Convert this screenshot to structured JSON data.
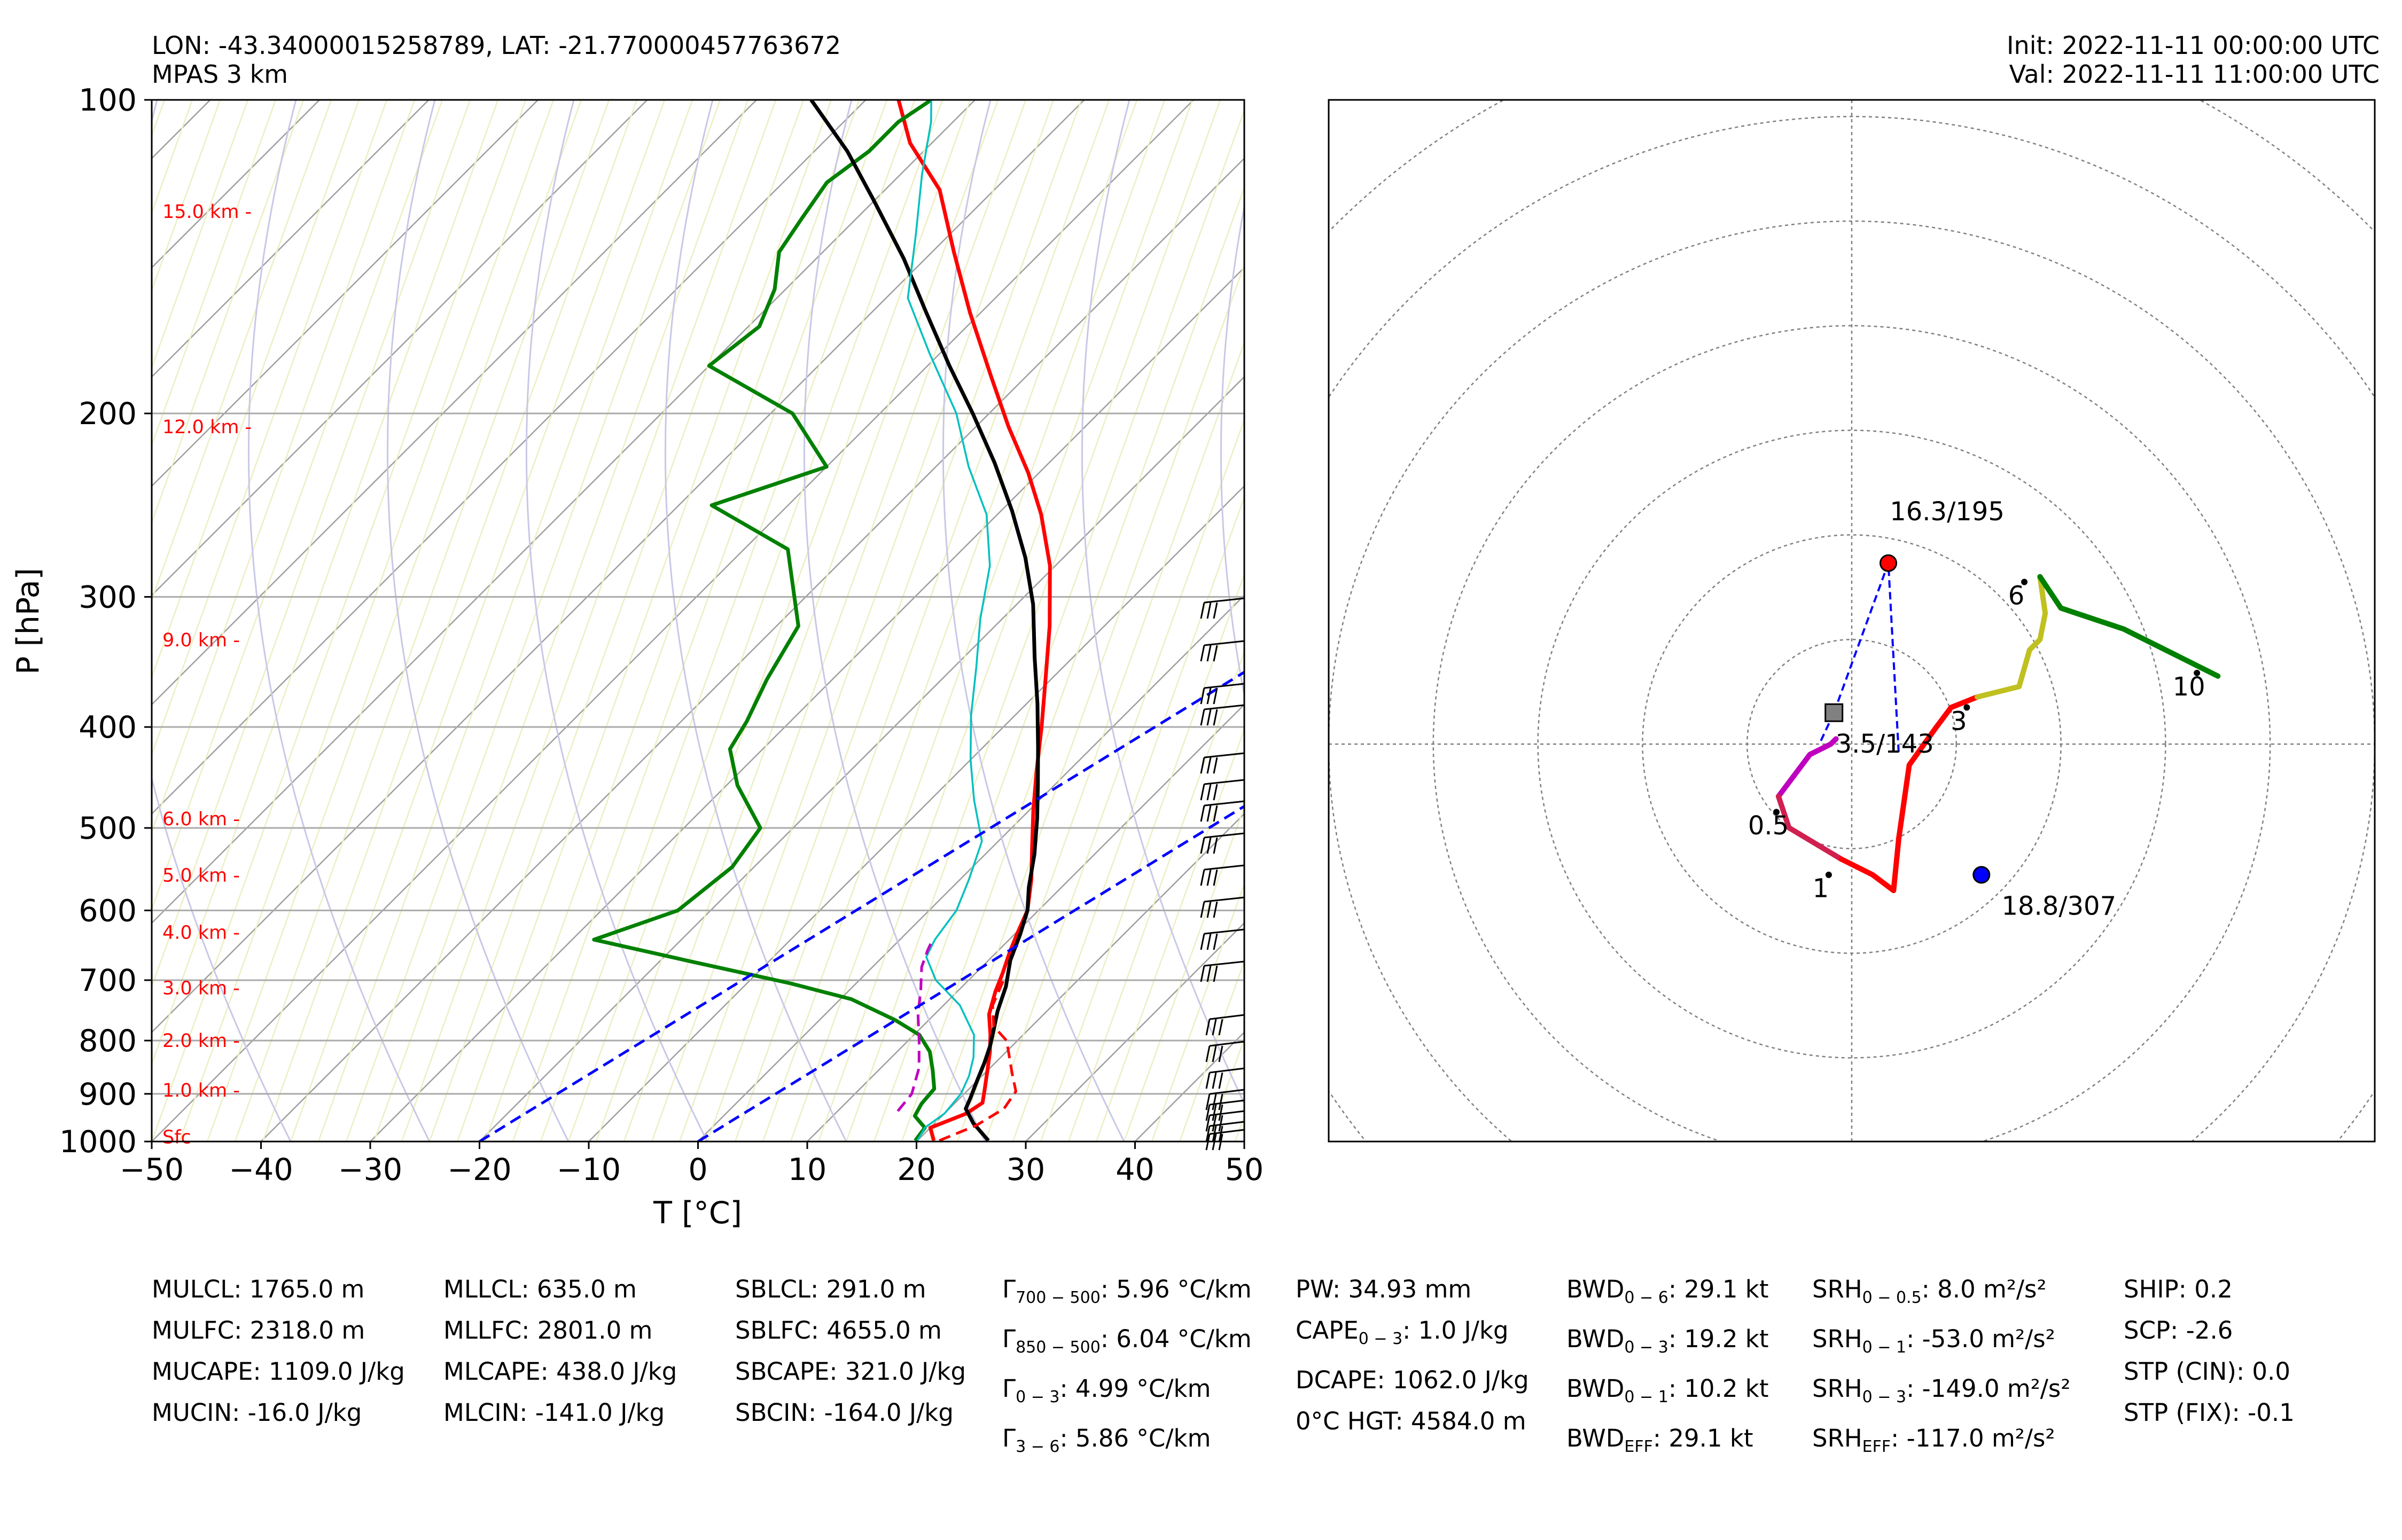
{
  "header": {
    "location": "LON: -43.34000015258789, LAT: -21.770000457763672",
    "model": "MPAS 3 km",
    "init": "Init: 2022-11-11 00:00:00 UTC",
    "valid": "Val: 2022-11-11 11:00:00 UTC"
  },
  "chart_data": [
    {
      "type": "line",
      "subtype": "skew-T log-P",
      "xlabel": "T [°C]",
      "ylabel": "P [hPa]",
      "xlim": [
        -50,
        50
      ],
      "ylim": [
        1000,
        100
      ],
      "y_scale": "log",
      "x_ticks": [
        "−50",
        "−40",
        "−30",
        "−20",
        "−10",
        "0",
        "10",
        "20",
        "30",
        "40",
        "50"
      ],
      "y_ticks": [
        "100",
        "200",
        "300",
        "400",
        "500",
        "600",
        "700",
        "800",
        "900",
        "1000"
      ],
      "y_tick_values": [
        100,
        200,
        300,
        400,
        500,
        600,
        700,
        800,
        900,
        1000
      ],
      "grid": true,
      "height_labels": [
        {
          "label": "15.0 km -",
          "p": 128
        },
        {
          "label": "12.0 km -",
          "p": 206
        },
        {
          "label": "9.0 km -",
          "p": 330
        },
        {
          "label": "6.0 km -",
          "p": 490
        },
        {
          "label": "5.0 km -",
          "p": 555
        },
        {
          "label": "4.0 km -",
          "p": 630
        },
        {
          "label": "3.0 km -",
          "p": 712
        },
        {
          "label": "2.0 km -",
          "p": 800
        },
        {
          "label": "1.0 km -",
          "p": 893
        },
        {
          "label": "Sfc",
          "p": 990
        }
      ],
      "series": [
        {
          "color": "#ff0000",
          "style": "solid",
          "points": [
            [
              21.5,
              998
            ],
            [
              20,
              970
            ],
            [
              22,
              940
            ],
            [
              22.5,
              918
            ],
            [
              21.5,
              892
            ],
            [
              20,
              855
            ],
            [
              18.5,
              820
            ],
            [
              17,
              790
            ],
            [
              15,
              755
            ],
            [
              13.5,
              718
            ],
            [
              12.5,
              690
            ],
            [
              11.2,
              658
            ],
            [
              10.2,
              632
            ],
            [
              9,
              600
            ],
            [
              6.5,
              560
            ],
            [
              3.5,
              520
            ],
            [
              0.3,
              480
            ],
            [
              -3,
              440
            ],
            [
              -6.5,
              400
            ],
            [
              -10.5,
              360
            ],
            [
              -15,
              320
            ],
            [
              -20.5,
              280
            ],
            [
              -26,
              250
            ],
            [
              -31,
              228
            ],
            [
              -37,
              206
            ],
            [
              -43,
              185
            ],
            [
              -51,
              160
            ],
            [
              -58,
              140
            ],
            [
              -65,
              122
            ],
            [
              -72,
              110
            ],
            [
              -77,
              100
            ]
          ]
        },
        {
          "color": "#008000",
          "style": "solid",
          "points": [
            [
              19.8,
              998
            ],
            [
              19.5,
              970
            ],
            [
              17.5,
              945
            ],
            [
              17,
              920
            ],
            [
              16.8,
              890
            ],
            [
              15,
              855
            ],
            [
              13,
              820
            ],
            [
              10.5,
              790
            ],
            [
              7,
              765
            ],
            [
              1,
              730
            ],
            [
              -6,
              705
            ],
            [
              -17,
              672
            ],
            [
              -28,
              640
            ],
            [
              -23,
              600
            ],
            [
              -22,
              545
            ],
            [
              -23,
              500
            ],
            [
              -29,
              455
            ],
            [
              -33,
              420
            ],
            [
              -34,
              395
            ],
            [
              -36,
              360
            ],
            [
              -38,
              320
            ],
            [
              -46,
              270
            ],
            [
              -57,
              245
            ],
            [
              -50,
              225
            ],
            [
              -58,
              200
            ],
            [
              -70,
              180
            ],
            [
              -69,
              165
            ],
            [
              -71,
              152
            ],
            [
              -74,
              140
            ],
            [
              -75,
              130
            ],
            [
              -76,
              120
            ],
            [
              -75,
              112
            ],
            [
              -75,
              105
            ],
            [
              -74,
              100
            ]
          ]
        },
        {
          "color": "#000000",
          "style": "solid",
          "points": [
            [
              26.5,
              998
            ],
            [
              23.5,
              960
            ],
            [
              21.5,
              930
            ],
            [
              21,
              910
            ],
            [
              20,
              875
            ],
            [
              19,
              840
            ],
            [
              18,
              810
            ],
            [
              17,
              785
            ],
            [
              15.5,
              750
            ],
            [
              14,
              710
            ],
            [
              12,
              670
            ],
            [
              10.5,
              632
            ],
            [
              9,
              600
            ],
            [
              7,
              570
            ],
            [
              4.5,
              530
            ],
            [
              1.5,
              490
            ],
            [
              -1.5,
              455
            ],
            [
              -5,
              418
            ],
            [
              -9,
              380
            ],
            [
              -13.5,
              343
            ],
            [
              -18.5,
              305
            ],
            [
              -23.5,
              275
            ],
            [
              -29,
              248
            ],
            [
              -35,
              223
            ],
            [
              -41.5,
              200
            ],
            [
              -48,
              180
            ],
            [
              -55,
              160
            ],
            [
              -62,
              142
            ],
            [
              -70,
              125
            ],
            [
              -77,
              112
            ],
            [
              -85,
              100
            ]
          ]
        },
        {
          "color": "#00c0c0",
          "style": "solid",
          "points": [
            [
              20,
              998
            ],
            [
              19.5,
              970
            ],
            [
              20,
              940
            ],
            [
              19.7,
              900
            ],
            [
              18.8,
              865
            ],
            [
              17.5,
              830
            ],
            [
              15.5,
              790
            ],
            [
              11.5,
              740
            ],
            [
              7,
              700
            ],
            [
              4,
              665
            ],
            [
              3.2,
              640
            ],
            [
              2.5,
              600
            ],
            [
              0.8,
              560
            ],
            [
              -1.5,
              515
            ],
            [
              -6,
              470
            ],
            [
              -10,
              430
            ],
            [
              -14,
              390
            ],
            [
              -18,
              350
            ],
            [
              -22,
              315
            ],
            [
              -26,
              280
            ],
            [
              -31,
              250
            ],
            [
              -37,
              225
            ],
            [
              -43,
              200
            ],
            [
              -51,
              175
            ],
            [
              -58,
              155
            ],
            [
              -63,
              135
            ],
            [
              -68,
              118
            ],
            [
              -72,
              105
            ],
            [
              -74,
              100
            ]
          ]
        },
        {
          "color": "#ff0000",
          "style": "dashed",
          "points": [
            [
              22,
              998
            ],
            [
              24,
              965
            ],
            [
              25,
              930
            ],
            [
              24.5,
              895
            ],
            [
              22.5,
              860
            ],
            [
              20.5,
              825
            ],
            [
              19,
              800
            ],
            [
              16.5,
              775
            ],
            [
              14.5,
              740
            ],
            [
              13.2,
              700
            ]
          ]
        },
        {
          "color": "#c000c0",
          "style": "dashed",
          "points": [
            [
              15.5,
              935
            ],
            [
              15.2,
              900
            ],
            [
              13.5,
              850
            ],
            [
              11,
              800
            ],
            [
              8.5,
              755
            ],
            [
              6.5,
              715
            ],
            [
              4.5,
              680
            ],
            [
              3.5,
              655
            ],
            [
              3,
              640
            ]
          ]
        },
        {
          "color": "#0000ff",
          "style": "dashed",
          "points": [
            [
              -20,
              1000
            ],
            [
              40,
              100
            ]
          ]
        },
        {
          "color": "#0000ff",
          "style": "dashed",
          "points": [
            [
              0,
              1000
            ],
            [
              60,
              100
            ]
          ]
        }
      ]
    },
    {
      "type": "line",
      "subtype": "hodograph",
      "xlim": [
        -50,
        50
      ],
      "ylim": [
        -38,
        62
      ],
      "ring_radii": [
        10,
        20,
        30,
        40,
        50,
        60,
        70
      ],
      "grid": true,
      "segments": [
        {
          "color": "#bf00bf",
          "points": [
            [
              -7,
              -5
            ],
            [
              -4,
              -1
            ],
            [
              -2,
              0
            ],
            [
              -1.5,
              0.5
            ]
          ]
        },
        {
          "color": "#d02050",
          "points": [
            [
              -7,
              -5
            ],
            [
              -6,
              -8
            ],
            [
              -1,
              -11
            ]
          ]
        },
        {
          "color": "#ff0000",
          "points": [
            [
              -1,
              -11
            ],
            [
              2,
              -12.5
            ],
            [
              4,
              -14
            ],
            [
              4.5,
              -9
            ],
            [
              5.5,
              -2
            ],
            [
              8,
              1.5
            ],
            [
              9.5,
              3.5
            ],
            [
              12,
              4.5
            ]
          ]
        },
        {
          "color": "#c0c020",
          "points": [
            [
              12,
              4.5
            ],
            [
              16,
              5.5
            ],
            [
              17,
              9
            ],
            [
              18,
              10
            ],
            [
              18.5,
              12.5
            ],
            [
              18,
              16
            ]
          ]
        },
        {
          "color": "#008000",
          "points": [
            [
              18,
              16
            ],
            [
              20,
              13
            ],
            [
              26,
              11
            ],
            [
              32,
              8
            ],
            [
              35,
              6.5
            ]
          ]
        }
      ],
      "level_labels": [
        {
          "label": "0.5",
          "u": -7.2,
          "v": -6.5
        },
        {
          "label": "1",
          "u": -2.2,
          "v": -12.5
        },
        {
          "label": "3",
          "u": 11,
          "v": 3.5
        },
        {
          "label": "6",
          "u": 16.5,
          "v": 15.5
        },
        {
          "label": "10",
          "u": 33,
          "v": 6.8
        }
      ],
      "markers": [
        {
          "shape": "circle",
          "color": "#ff0000",
          "u": 3.5,
          "v": 17.3,
          "label": "16.3/195"
        },
        {
          "shape": "circle",
          "color": "#0000ff",
          "u": 12.4,
          "v": -12.5,
          "label": "18.8/307"
        },
        {
          "shape": "square",
          "color": "#808080",
          "u": -1.7,
          "v": 3.0,
          "label": "3.5/143"
        }
      ]
    }
  ],
  "indices": [
    [
      "MULCL: 1765.0 m",
      "MULFC: 2318.0 m",
      "MUCAPE: 1109.0 J/kg",
      "MUCIN: -16.0 J/kg"
    ],
    [
      "MLLCL: 635.0 m",
      "MLLFC: 2801.0 m",
      "MLCAPE: 438.0 J/kg",
      "MLCIN: -141.0 J/kg"
    ],
    [
      "SBLCL: 291.0 m",
      "SBLFC: 4655.0 m",
      "SBCAPE: 321.0 J/kg",
      "SBCIN: -164.0 J/kg"
    ],
    [
      {
        "pre": "Γ",
        "sub": "700 − 500",
        "post": ": 5.96 °C/km"
      },
      {
        "pre": "Γ",
        "sub": "850 − 500",
        "post": ": 6.04 °C/km"
      },
      {
        "pre": "Γ",
        "sub": "0 − 3",
        "post": ": 4.99 °C/km"
      },
      {
        "pre": "Γ",
        "sub": "3 − 6",
        "post": ": 5.86 °C/km"
      }
    ],
    [
      {
        "pre": "PW: 34.93 mm",
        "sub": "",
        "post": ""
      },
      {
        "pre": "CAPE",
        "sub": "0 − 3",
        "post": ": 1.0 J/kg"
      },
      {
        "pre": "DCAPE: 1062.0 J/kg",
        "sub": "",
        "post": ""
      },
      {
        "pre": "0°C HGT: 4584.0 m",
        "sub": "",
        "post": ""
      }
    ],
    [
      {
        "pre": "BWD",
        "sub": "0 − 6",
        "post": ": 29.1 kt"
      },
      {
        "pre": "BWD",
        "sub": "0 − 3",
        "post": ": 19.2 kt"
      },
      {
        "pre": "BWD",
        "sub": "0 − 1",
        "post": ": 10.2 kt"
      },
      {
        "pre": "BWD",
        "sub": "EFF",
        "post": ": 29.1 kt"
      }
    ],
    [
      {
        "pre": "SRH",
        "sub": "0 − 0.5",
        "post": ": 8.0 m²/s²"
      },
      {
        "pre": "SRH",
        "sub": "0 − 1",
        "post": ": -53.0 m²/s²"
      },
      {
        "pre": "SRH",
        "sub": "0 − 3",
        "post": ": -149.0 m²/s²"
      },
      {
        "pre": "SRH",
        "sub": "EFF",
        "post": ": -117.0 m²/s²"
      }
    ],
    [
      "SHIP: 0.2",
      "SCP: -2.6",
      "STP (CIN): 0.0",
      "STP (FIX): -0.1"
    ]
  ]
}
